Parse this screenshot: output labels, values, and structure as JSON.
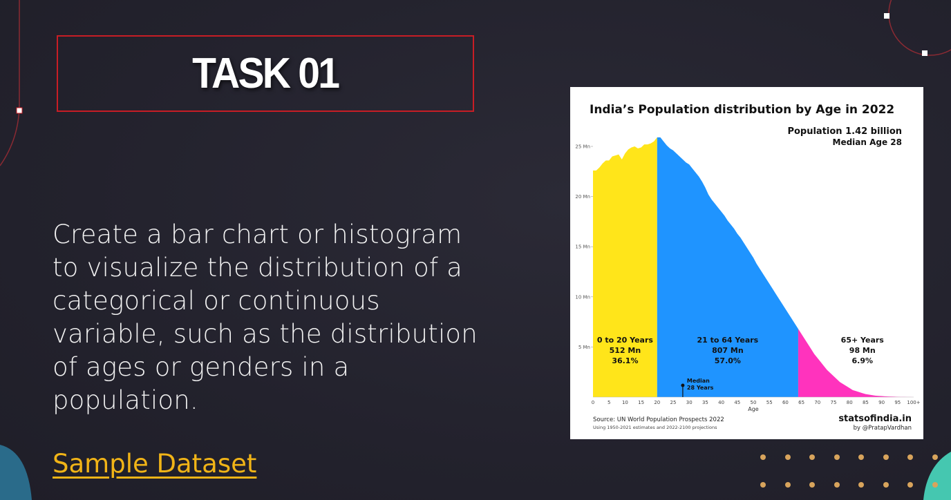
{
  "slide": {
    "title": "TASK 01",
    "body_lines": [
      "Create a bar chart or histogram",
      "to visualize the distribution of a",
      "categorical or continuous",
      "variable, such as the distribution",
      "of ages or genders in a",
      "population."
    ],
    "link_label": "Sample Dataset"
  },
  "chart_data": {
    "type": "area",
    "title": "India’s Population distribution by Age in 2022",
    "subtitle_1": "Population 1.42 billion",
    "subtitle_2": "Median Age 28",
    "xlabel": "Age",
    "ylabel": "",
    "xlim": [
      0,
      100
    ],
    "ylim": [
      0,
      25
    ],
    "x_ticks": [
      "0",
      "5",
      "10",
      "15",
      "20",
      "25",
      "30",
      "35",
      "40",
      "45",
      "50",
      "55",
      "60",
      "65",
      "70",
      "75",
      "80",
      "85",
      "90",
      "95",
      "100+"
    ],
    "y_ticks": [
      "5 Mn",
      "10 Mn",
      "15 Mn",
      "20 Mn",
      "25 Mn"
    ],
    "x": [
      0,
      1,
      2,
      3,
      4,
      5,
      6,
      7,
      8,
      9,
      10,
      11,
      12,
      13,
      14,
      15,
      16,
      17,
      18,
      19,
      20,
      21,
      22,
      23,
      24,
      25,
      26,
      27,
      28,
      29,
      30,
      31,
      32,
      33,
      34,
      35,
      36,
      37,
      38,
      39,
      40,
      41,
      42,
      43,
      44,
      45,
      46,
      47,
      48,
      49,
      50,
      51,
      52,
      53,
      54,
      55,
      56,
      57,
      58,
      59,
      60,
      61,
      62,
      63,
      64,
      65,
      66,
      67,
      68,
      69,
      70,
      71,
      72,
      73,
      74,
      75,
      76,
      77,
      78,
      79,
      80,
      81,
      82,
      83,
      84,
      85,
      86,
      87,
      88,
      89,
      90,
      91,
      92,
      93,
      94,
      95,
      96,
      97,
      98,
      99,
      100
    ],
    "values": [
      22.6,
      22.6,
      22.9,
      23.3,
      23.6,
      23.6,
      24.0,
      24.1,
      24.2,
      23.7,
      24.3,
      24.7,
      24.9,
      25.0,
      24.8,
      24.9,
      25.2,
      25.2,
      25.3,
      25.5,
      25.9,
      25.9,
      25.5,
      25.1,
      24.8,
      24.6,
      24.3,
      24.0,
      23.7,
      23.4,
      23.2,
      22.8,
      22.4,
      22.0,
      21.5,
      20.9,
      20.2,
      19.7,
      19.3,
      18.9,
      18.5,
      18.1,
      17.6,
      17.2,
      16.8,
      16.3,
      15.9,
      15.4,
      14.9,
      14.4,
      13.9,
      13.3,
      12.8,
      12.3,
      11.8,
      11.3,
      10.8,
      10.3,
      9.8,
      9.3,
      8.8,
      8.3,
      7.8,
      7.3,
      6.8,
      6.3,
      5.8,
      5.3,
      4.8,
      4.3,
      3.9,
      3.5,
      3.1,
      2.7,
      2.4,
      2.1,
      1.8,
      1.5,
      1.3,
      1.1,
      0.9,
      0.7,
      0.6,
      0.5,
      0.4,
      0.3,
      0.25,
      0.2,
      0.15,
      0.12,
      0.1,
      0.08,
      0.06,
      0.05,
      0.04,
      0.03,
      0.02,
      0.015,
      0.01,
      0.01,
      0.0
    ],
    "segments": [
      {
        "range": [
          0,
          20
        ],
        "color": "#ffe51a",
        "label": "0 to 20 Years",
        "value_label": "512 Mn",
        "pct_label": "36.1%"
      },
      {
        "range": [
          20,
          64
        ],
        "color": "#1f94ff",
        "label": "21 to 64 Years",
        "value_label": "807 Mn",
        "pct_label": "57.0%"
      },
      {
        "range": [
          64,
          100
        ],
        "color": "#ff33bd",
        "label": "65+ Years",
        "value_label": "98 Mn",
        "pct_label": "6.9%"
      }
    ],
    "median": {
      "age": 28,
      "label_1": "Median",
      "label_2": "28 Years"
    },
    "source_1": "Source: UN World Population Prospects 2022",
    "source_2": "Using 1950-2021 estimates and 2022-2100 projections",
    "brand_1": "statsofindia.in",
    "brand_2": "by @PratapVardhan",
    "grid": false,
    "legend": "none"
  },
  "colors": {
    "background": "#24232f",
    "title_border": "#c81d25",
    "link": "#f1b417",
    "dots": "#d8a45c"
  }
}
